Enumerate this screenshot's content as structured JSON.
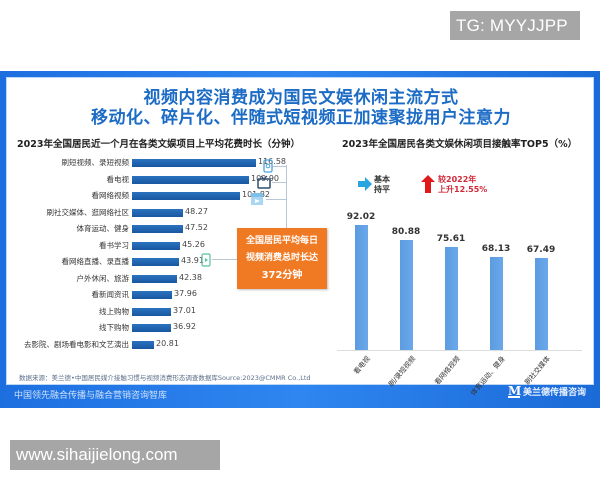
{
  "watermarks": {
    "top": "TG: MYYJJPP",
    "bottom": "www.sihaijielong.com"
  },
  "infographic": {
    "title_line1": "视频内容消费成为国民文娱休闲主流方式",
    "title_line2": "移动化、碎片化、伴随式短视频正加速聚拢用户注意力",
    "colors": {
      "frame_blue": "#1d6fe0",
      "title_blue": "#1c6bc5",
      "left_bar": "#1f60aa",
      "right_bar": "#5b9be0",
      "callout_orange": "#f07a23",
      "legend_red": "#d02a3a",
      "legend_cyan": "#29a6e0"
    },
    "callout": {
      "line1": "全国居民平均每日",
      "line2": "视频消费总时长达",
      "line3": "372分钟"
    },
    "right_legend": {
      "flat_label_1": "基本",
      "flat_label_2": "持平",
      "up_label_1": "较2022年",
      "up_label_2": "上升12.55%"
    },
    "source": "数据来源：美兰德•中国居民媒介接触习惯与视频消费形态调查数据库Source:2023@CMMR Co.,Ltd",
    "footer_left": "中国领先融合传播与融合营销咨询智库",
    "footer_logo_letter": "M",
    "footer_logo_text": "美兰德传播咨询"
  },
  "chart_data": [
    {
      "type": "bar",
      "orientation": "horizontal",
      "title": "2023年全国居民近一个月在各类文娱项目上平均花费时长（分钟）",
      "categories": [
        "刷短视频、录短视频",
        "看电视",
        "看网络视频",
        "刷社交媒体、逛网络社区",
        "体育运动、健身",
        "看书学习",
        "看网络直播、录直播",
        "户外休闲、旅游",
        "看新闻资讯",
        "线上购物",
        "线下购物",
        "去影院、剧场看电影和文艺演出"
      ],
      "values": [
        116.58,
        109.9,
        101.82,
        48.27,
        47.52,
        45.26,
        43.91,
        42.38,
        37.96,
        37.01,
        36.92,
        20.81
      ],
      "value_labels": [
        "116.58",
        "109.90",
        "101.82",
        "48.27",
        "47.52",
        "45.26",
        "43.91",
        "42.38",
        "37.96",
        "37.01",
        "36.92",
        "20.81"
      ],
      "xlabel": "",
      "ylabel": "",
      "unit": "分钟",
      "annotation": "全国居民平均每日视频消费总时长达372分钟",
      "grid": false
    },
    {
      "type": "bar",
      "orientation": "vertical",
      "title": "2023年全国居民各类文娱休闲项目接触率TOP5（%）",
      "categories": [
        "看电视",
        "刷/录短视频",
        "看网络视频",
        "体育运动、健身",
        "刷社交媒体"
      ],
      "values": [
        92.02,
        80.88,
        75.61,
        68.13,
        67.49
      ],
      "value_labels": [
        "92.02",
        "80.88",
        "75.61",
        "68.13",
        "67.49"
      ],
      "xlabel": "",
      "ylabel": "",
      "unit": "%",
      "ylim": [
        0,
        100
      ],
      "annotations": [
        "看电视：基本持平",
        "刷/录短视频：较2022年上升12.55%"
      ],
      "grid": false
    }
  ]
}
